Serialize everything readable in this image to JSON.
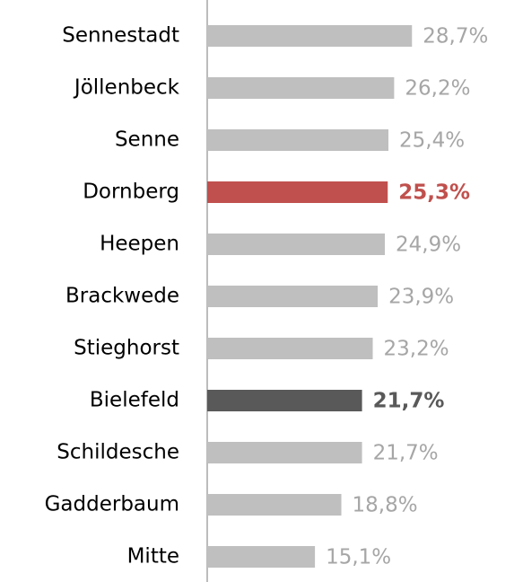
{
  "chart_data": {
    "type": "barh",
    "categories": [
      "Sennestadt",
      "Jöllenbeck",
      "Senne",
      "Dornberg",
      "Heepen",
      "Brackwede",
      "Stieghorst",
      "Bielefeld",
      "Schildesche",
      "Gadderbaum",
      "Mitte"
    ],
    "values": [
      28.7,
      26.2,
      25.4,
      25.3,
      24.9,
      23.9,
      23.2,
      21.7,
      21.7,
      18.8,
      15.1
    ],
    "value_labels": [
      "28,7%",
      "26,2%",
      "25,4%",
      "25,3%",
      "24,9%",
      "23,9%",
      "23,2%",
      "21,7%",
      "21,7%",
      "18,8%",
      "15,1%"
    ],
    "colors": [
      "#bfbfbf",
      "#bfbfbf",
      "#bfbfbf",
      "#c0504d",
      "#bfbfbf",
      "#bfbfbf",
      "#bfbfbf",
      "#595959",
      "#bfbfbf",
      "#bfbfbf",
      "#bfbfbf"
    ],
    "label_colors": [
      "#a6a6a6",
      "#a6a6a6",
      "#a6a6a6",
      "#c0504d",
      "#a6a6a6",
      "#a6a6a6",
      "#a6a6a6",
      "#595959",
      "#a6a6a6",
      "#a6a6a6",
      "#a6a6a6"
    ],
    "bold": [
      false,
      false,
      false,
      true,
      false,
      false,
      false,
      true,
      false,
      false,
      false
    ],
    "xlim": [
      0,
      43
    ]
  }
}
